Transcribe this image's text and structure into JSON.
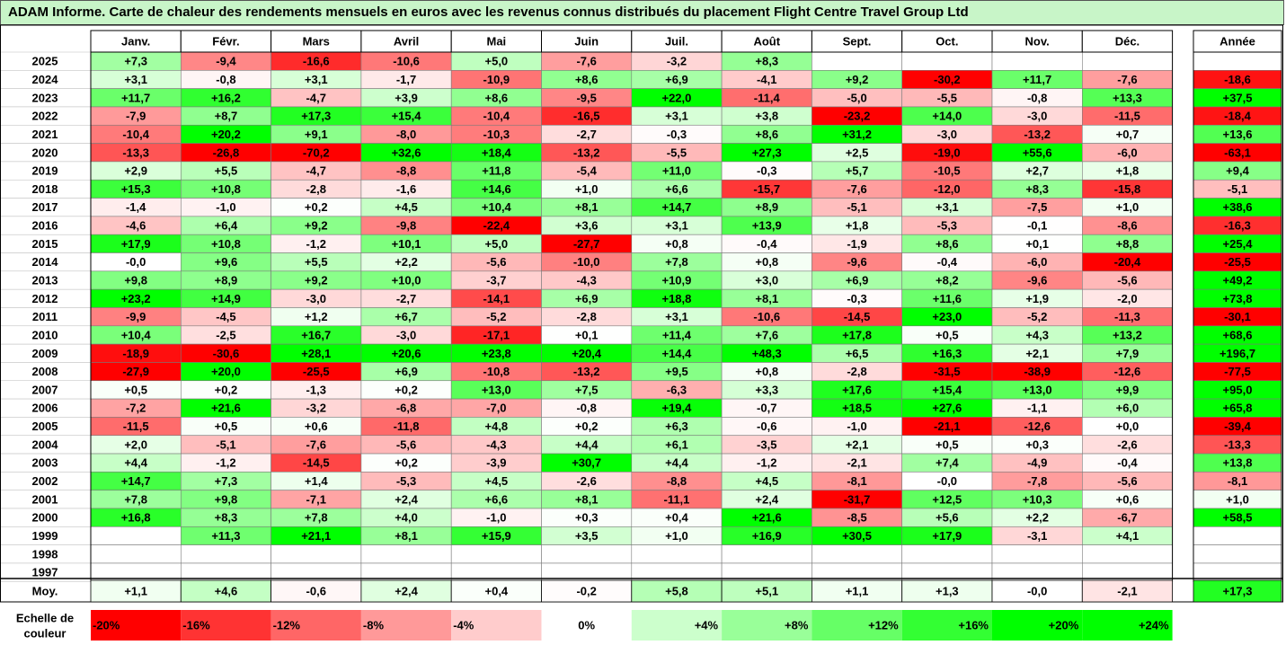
{
  "title": "ADAM Informe. Carte de chaleur des rendements mensuels en euros avec les revenus connus distribués du placement Flight Centre Travel Group Ltd",
  "chart_data": {
    "type": "heatmap",
    "months": [
      "Janv.",
      "Févr.",
      "Mars",
      "Avril",
      "Mai",
      "Juin",
      "Juil.",
      "Août",
      "Sept.",
      "Oct.",
      "Nov.",
      "Déc."
    ],
    "year_header": "Année",
    "avg_label": "Moy.",
    "rows": [
      {
        "year": "2025",
        "values": [
          "+7,3",
          "-9,4",
          "-16,6",
          "-10,6",
          "+5,0",
          "-7,6",
          "-3,2",
          "+8,3",
          "",
          "",
          "",
          ""
        ],
        "annual": ""
      },
      {
        "year": "2024",
        "values": [
          "+3,1",
          "-0,8",
          "+3,1",
          "-1,7",
          "-10,9",
          "+8,6",
          "+6,9",
          "-4,1",
          "+9,2",
          "-30,2",
          "+11,7",
          "-7,6"
        ],
        "annual": "-18,6"
      },
      {
        "year": "2023",
        "values": [
          "+11,7",
          "+16,2",
          "-4,7",
          "+3,9",
          "+8,6",
          "-9,5",
          "+22,0",
          "-11,4",
          "-5,0",
          "-5,5",
          "-0,8",
          "+13,3"
        ],
        "annual": "+37,5"
      },
      {
        "year": "2022",
        "values": [
          "-7,9",
          "+8,7",
          "+17,3",
          "+15,4",
          "-10,4",
          "-16,5",
          "+3,1",
          "+3,8",
          "-23,2",
          "+14,0",
          "-3,0",
          "-11,5"
        ],
        "annual": "-18,4"
      },
      {
        "year": "2021",
        "values": [
          "-10,4",
          "+20,2",
          "+9,1",
          "-8,0",
          "-10,3",
          "-2,7",
          "-0,3",
          "+8,6",
          "+31,2",
          "-3,0",
          "-13,2",
          "+0,7"
        ],
        "annual": "+13,6"
      },
      {
        "year": "2020",
        "values": [
          "-13,3",
          "-26,8",
          "-70,2",
          "+32,6",
          "+18,4",
          "-13,2",
          "-5,5",
          "+27,3",
          "+2,5",
          "-19,0",
          "+55,6",
          "-6,0"
        ],
        "annual": "-63,1"
      },
      {
        "year": "2019",
        "values": [
          "+2,9",
          "+5,5",
          "-4,7",
          "-8,8",
          "+11,8",
          "-5,4",
          "+11,0",
          "-0,3",
          "+5,7",
          "-10,5",
          "+2,7",
          "+1,8"
        ],
        "annual": "+9,4"
      },
      {
        "year": "2018",
        "values": [
          "+15,3",
          "+10,8",
          "-2,8",
          "-1,6",
          "+14,6",
          "+1,0",
          "+6,6",
          "-15,7",
          "-7,6",
          "-12,0",
          "+8,3",
          "-15,8"
        ],
        "annual": "-5,1"
      },
      {
        "year": "2017",
        "values": [
          "-1,4",
          "-1,0",
          "+0,2",
          "+4,5",
          "+10,4",
          "+8,1",
          "+14,7",
          "+8,9",
          "-5,1",
          "+3,1",
          "-7,5",
          "+1,0"
        ],
        "annual": "+38,6"
      },
      {
        "year": "2016",
        "values": [
          "-4,6",
          "+6,4",
          "+9,2",
          "-9,8",
          "-22,4",
          "+3,6",
          "+3,1",
          "+13,9",
          "+1,8",
          "-5,3",
          "-0,1",
          "-8,6"
        ],
        "annual": "-16,3"
      },
      {
        "year": "2015",
        "values": [
          "+17,9",
          "+10,8",
          "-1,2",
          "+10,1",
          "+5,0",
          "-27,7",
          "+0,8",
          "-0,4",
          "-1,9",
          "+8,6",
          "+0,1",
          "+8,8"
        ],
        "annual": "+25,4"
      },
      {
        "year": "2014",
        "values": [
          "-0,0",
          "+9,6",
          "+5,5",
          "+2,2",
          "-5,6",
          "-10,0",
          "+7,8",
          "+0,8",
          "-9,6",
          "-0,4",
          "-6,0",
          "-20,4"
        ],
        "annual": "-25,5"
      },
      {
        "year": "2013",
        "values": [
          "+9,8",
          "+8,9",
          "+9,2",
          "+10,0",
          "-3,7",
          "-4,3",
          "+10,9",
          "+3,0",
          "+6,9",
          "+8,2",
          "-9,6",
          "-5,6"
        ],
        "annual": "+49,2"
      },
      {
        "year": "2012",
        "values": [
          "+23,2",
          "+14,9",
          "-3,0",
          "-2,7",
          "-14,1",
          "+6,9",
          "+18,8",
          "+8,1",
          "-0,3",
          "+11,6",
          "+1,9",
          "-2,0"
        ],
        "annual": "+73,8"
      },
      {
        "year": "2011",
        "values": [
          "-9,9",
          "-4,5",
          "+1,2",
          "+6,7",
          "-5,2",
          "-2,8",
          "+3,1",
          "-10,6",
          "-14,5",
          "+23,0",
          "-5,2",
          "-11,3"
        ],
        "annual": "-30,1"
      },
      {
        "year": "2010",
        "values": [
          "+10,4",
          "-2,5",
          "+16,7",
          "-3,0",
          "-17,1",
          "+0,1",
          "+11,4",
          "+7,6",
          "+17,8",
          "+0,5",
          "+4,3",
          "+13,2"
        ],
        "annual": "+68,6"
      },
      {
        "year": "2009",
        "values": [
          "-18,9",
          "-30,6",
          "+28,1",
          "+20,6",
          "+23,8",
          "+20,4",
          "+14,4",
          "+48,3",
          "+6,5",
          "+16,3",
          "+2,1",
          "+7,9"
        ],
        "annual": "+196,7"
      },
      {
        "year": "2008",
        "values": [
          "-27,9",
          "+20,0",
          "-25,5",
          "+6,9",
          "-10,8",
          "-13,2",
          "+9,5",
          "+0,8",
          "-2,8",
          "-31,5",
          "-38,9",
          "-12,6"
        ],
        "annual": "-77,5"
      },
      {
        "year": "2007",
        "values": [
          "+0,5",
          "+0,2",
          "-1,3",
          "+0,2",
          "+13,0",
          "+7,5",
          "-6,3",
          "+3,3",
          "+17,6",
          "+15,4",
          "+13,0",
          "+9,9"
        ],
        "annual": "+95,0"
      },
      {
        "year": "2006",
        "values": [
          "-7,2",
          "+21,6",
          "-3,2",
          "-6,8",
          "-7,0",
          "-0,8",
          "+19,4",
          "-0,7",
          "+18,5",
          "+27,6",
          "-1,1",
          "+6,0"
        ],
        "annual": "+65,8"
      },
      {
        "year": "2005",
        "values": [
          "-11,5",
          "+0,5",
          "+0,6",
          "-11,8",
          "+4,8",
          "+0,2",
          "+6,3",
          "-0,6",
          "-1,0",
          "-21,1",
          "-12,6",
          "+0,0"
        ],
        "annual": "-39,4"
      },
      {
        "year": "2004",
        "values": [
          "+2,0",
          "-5,1",
          "-7,6",
          "-5,6",
          "-4,3",
          "+4,4",
          "+6,1",
          "-3,5",
          "+2,1",
          "+0,5",
          "+0,3",
          "-2,6"
        ],
        "annual": "-13,3"
      },
      {
        "year": "2003",
        "values": [
          "+4,4",
          "-1,2",
          "-14,5",
          "+0,2",
          "-3,9",
          "+30,7",
          "+4,4",
          "-1,2",
          "-2,1",
          "+7,4",
          "-4,9",
          "-0,4"
        ],
        "annual": "+13,8"
      },
      {
        "year": "2002",
        "values": [
          "+14,7",
          "+7,3",
          "+1,4",
          "-5,3",
          "+4,5",
          "-2,6",
          "-8,8",
          "+4,5",
          "-8,1",
          "-0,0",
          "-7,8",
          "-5,6"
        ],
        "annual": "-8,1"
      },
      {
        "year": "2001",
        "values": [
          "+7,8",
          "+9,8",
          "-7,1",
          "+2,4",
          "+6,6",
          "+8,1",
          "-11,1",
          "+2,4",
          "-31,7",
          "+12,5",
          "+10,3",
          "+0,6"
        ],
        "annual": "+1,0"
      },
      {
        "year": "2000",
        "values": [
          "+16,8",
          "+8,3",
          "+7,8",
          "+4,0",
          "-1,0",
          "+0,3",
          "+0,4",
          "+21,6",
          "-8,5",
          "+5,6",
          "+2,2",
          "-6,7"
        ],
        "annual": "+58,5"
      },
      {
        "year": "1999",
        "values": [
          "",
          "+11,3",
          "+21,1",
          "+8,1",
          "+15,9",
          "+3,5",
          "+1,0",
          "+16,9",
          "+30,5",
          "+17,9",
          "-3,1",
          "+4,1"
        ],
        "annual": ""
      },
      {
        "year": "1998",
        "values": [
          "",
          "",
          "",
          "",
          "",
          "",
          "",
          "",
          "",
          "",
          "",
          ""
        ],
        "annual": ""
      },
      {
        "year": "1997",
        "values": [
          "",
          "",
          "",
          "",
          "",
          "",
          "",
          "",
          "",
          "",
          "",
          ""
        ],
        "annual": ""
      }
    ],
    "averages": [
      "+1,1",
      "+4,6",
      "-0,6",
      "+2,4",
      "+0,4",
      "-0,2",
      "+5,8",
      "+5,1",
      "+1,1",
      "+1,3",
      "-0,0",
      "-2,1"
    ],
    "avg_annual": "+17,3",
    "scale_label": "Echelle de couleur",
    "scale": [
      "-20%",
      "-16%",
      "-12%",
      "-8%",
      "-4%",
      "0%",
      "+4%",
      "+8%",
      "+12%",
      "+16%",
      "+20%",
      "+24%"
    ],
    "colors": {
      "negative": "#ff0000",
      "positive": "#00ff00",
      "neutral": "#ffffff",
      "title_bg": "#c8f5c8"
    }
  }
}
